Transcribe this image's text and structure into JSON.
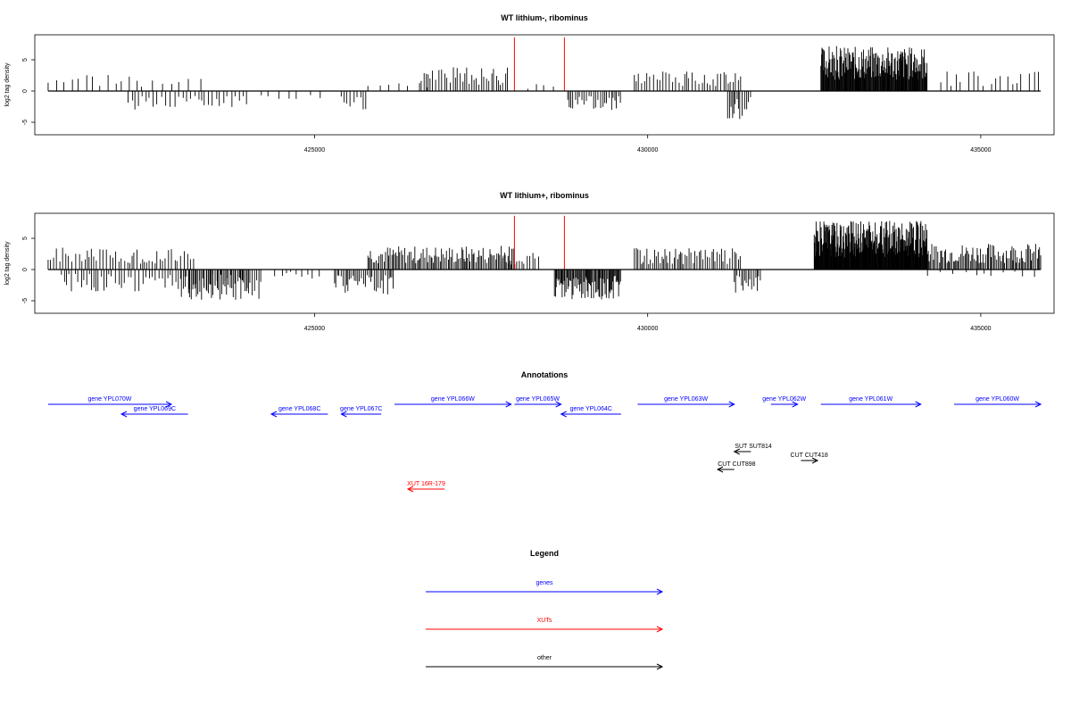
{
  "chart_data": [
    {
      "type": "bar",
      "title": "WT lithium-, ribominus",
      "ylabel": "log2 tag density",
      "xlim": [
        420800,
        436100
      ],
      "ylim": [
        -7,
        9
      ],
      "xticks": [
        425000,
        430000,
        435000
      ],
      "xtick_labels": [
        "425000",
        "430000",
        "435000"
      ],
      "yticks": [
        -5,
        0,
        5
      ],
      "ytick_labels": [
        "-5",
        "0",
        "5"
      ],
      "highlight_color": "#ff0000",
      "highlights": [
        {
          "x": 428000,
          "y": 8.6
        },
        {
          "x": 428750,
          "y": 8.6
        }
      ],
      "segments": [
        {
          "from": 421000,
          "to": 422400,
          "lo": 0,
          "hi": 3.2,
          "step": 95,
          "seed": 3
        },
        {
          "from": 422400,
          "to": 423400,
          "lo": 0,
          "hi": 2.4,
          "step": 140,
          "seed": 4
        },
        {
          "from": 422200,
          "to": 424000,
          "lo": -3,
          "hi": 0,
          "step": 55,
          "seed": 5
        },
        {
          "from": 424200,
          "to": 425200,
          "lo": -1.5,
          "hi": 0,
          "step": 160,
          "seed": 6
        },
        {
          "from": 425400,
          "to": 425800,
          "lo": -3,
          "hi": 0,
          "step": 55,
          "seed": 7
        },
        {
          "from": 425800,
          "to": 426700,
          "lo": 0,
          "hi": 1.5,
          "step": 140,
          "seed": 8
        },
        {
          "from": 426600,
          "to": 427900,
          "lo": 0,
          "hi": 3.8,
          "step": 38,
          "seed": 9
        },
        {
          "from": 428200,
          "to": 428600,
          "lo": 0,
          "hi": 1.2,
          "step": 130,
          "seed": 10
        },
        {
          "from": 428800,
          "to": 429600,
          "lo": -3.2,
          "hi": 0,
          "step": 32,
          "seed": 11
        },
        {
          "from": 429800,
          "to": 431400,
          "lo": 0,
          "hi": 3.2,
          "step": 42,
          "seed": 12
        },
        {
          "from": 431200,
          "to": 431550,
          "lo": -4.8,
          "hi": 0,
          "step": 28,
          "seed": 13
        },
        {
          "from": 432600,
          "to": 434200,
          "lo": 0,
          "hi": 7.2,
          "step": 9,
          "seed": 14
        },
        {
          "from": 434400,
          "to": 435900,
          "lo": 0,
          "hi": 3.2,
          "step": 95,
          "seed": 15
        }
      ]
    },
    {
      "type": "bar",
      "title": "WT lithium+, ribominus",
      "ylabel": "log2 tag density",
      "xlim": [
        420800,
        436100
      ],
      "ylim": [
        -7,
        9
      ],
      "xticks": [
        425000,
        430000,
        435000
      ],
      "xtick_labels": [
        "425000",
        "430000",
        "435000"
      ],
      "yticks": [
        -5,
        0,
        5
      ],
      "ytick_labels": [
        "-5",
        "0",
        "5"
      ],
      "highlight_color": "#ff0000",
      "highlights": [
        {
          "x": 428000,
          "y": 8.6
        },
        {
          "x": 428750,
          "y": 8.6
        }
      ],
      "segments": [
        {
          "from": 421000,
          "to": 423200,
          "lo": 0,
          "hi": 3.5,
          "step": 42,
          "seed": 21
        },
        {
          "from": 421200,
          "to": 424000,
          "lo": -3.5,
          "hi": 0,
          "step": 48,
          "seed": 22
        },
        {
          "from": 423000,
          "to": 424200,
          "lo": -5,
          "hi": 0,
          "step": 26,
          "seed": 23
        },
        {
          "from": 424400,
          "to": 425100,
          "lo": -1.5,
          "hi": 0,
          "step": 90,
          "seed": 24
        },
        {
          "from": 425300,
          "to": 426200,
          "lo": -4,
          "hi": 0,
          "step": 26,
          "seed": 25
        },
        {
          "from": 425800,
          "to": 428000,
          "lo": 0,
          "hi": 3.8,
          "step": 22,
          "seed": 26
        },
        {
          "from": 427800,
          "to": 428400,
          "lo": 0,
          "hi": 2.8,
          "step": 40,
          "seed": 27
        },
        {
          "from": 428600,
          "to": 429600,
          "lo": -5,
          "hi": 0,
          "step": 14,
          "seed": 28
        },
        {
          "from": 429800,
          "to": 431400,
          "lo": 0,
          "hi": 3.5,
          "step": 28,
          "seed": 29
        },
        {
          "from": 431300,
          "to": 431700,
          "lo": -3.8,
          "hi": 0,
          "step": 26,
          "seed": 30
        },
        {
          "from": 432500,
          "to": 434200,
          "lo": 0,
          "hi": 7.8,
          "step": 7,
          "seed": 31
        },
        {
          "from": 434200,
          "to": 435900,
          "lo": 0,
          "hi": 4.2,
          "step": 20,
          "seed": 32
        },
        {
          "from": 434200,
          "to": 435900,
          "lo": -1.2,
          "hi": 0,
          "step": 150,
          "seed": 33
        }
      ]
    }
  ],
  "annotations": {
    "title": "Annotations",
    "features": [
      {
        "label": "gene YPL070W",
        "start": 421000,
        "end": 422850,
        "strand": "+",
        "row": 0,
        "color": "#0000ff"
      },
      {
        "label": "gene YPL069C",
        "start": 422100,
        "end": 423100,
        "strand": "-",
        "row": 1,
        "color": "#0000ff"
      },
      {
        "label": "gene YPL068C",
        "start": 424350,
        "end": 425200,
        "strand": "-",
        "row": 1,
        "color": "#0000ff"
      },
      {
        "label": "gene YPL067C",
        "start": 425400,
        "end": 426000,
        "strand": "-",
        "row": 1,
        "color": "#0000ff"
      },
      {
        "label": "gene YPL066W",
        "start": 426200,
        "end": 427950,
        "strand": "+",
        "row": 0,
        "color": "#0000ff"
      },
      {
        "label": "gene YPL065W",
        "start": 428000,
        "end": 428700,
        "strand": "+",
        "row": 0,
        "color": "#0000ff"
      },
      {
        "label": "gene YPL064C",
        "start": 428700,
        "end": 429600,
        "strand": "-",
        "row": 1,
        "color": "#0000ff"
      },
      {
        "label": "gene YPL063W",
        "start": 429850,
        "end": 431300,
        "strand": "+",
        "row": 0,
        "color": "#0000ff"
      },
      {
        "label": "gene YPL062W",
        "start": 431850,
        "end": 432250,
        "strand": "+",
        "row": 0,
        "color": "#0000ff"
      },
      {
        "label": "gene YPL061W",
        "start": 432600,
        "end": 434100,
        "strand": "+",
        "row": 0,
        "color": "#0000ff"
      },
      {
        "label": "gene YPL060W",
        "start": 434600,
        "end": 435900,
        "strand": "+",
        "row": 0,
        "color": "#0000ff"
      },
      {
        "label": "SUT SUT814",
        "start": 431300,
        "end": 431550,
        "strand": "-",
        "row": 2,
        "color": "#000000"
      },
      {
        "label": "CUT CUT418",
        "start": 432300,
        "end": 432550,
        "strand": "+",
        "row": 3,
        "color": "#000000"
      },
      {
        "label": "CUT CUT898",
        "start": 431050,
        "end": 431300,
        "strand": "-",
        "row": 4,
        "color": "#000000"
      },
      {
        "label": "XUT 16R-179",
        "start": 426400,
        "end": 426950,
        "strand": "-",
        "row": 5,
        "color": "#ff0000"
      }
    ]
  },
  "legend": {
    "title": "Legend",
    "items": [
      {
        "label": "genes",
        "color": "#0000ff"
      },
      {
        "label": "XUTs",
        "color": "#ff0000"
      },
      {
        "label": "other",
        "color": "#000000"
      }
    ]
  }
}
